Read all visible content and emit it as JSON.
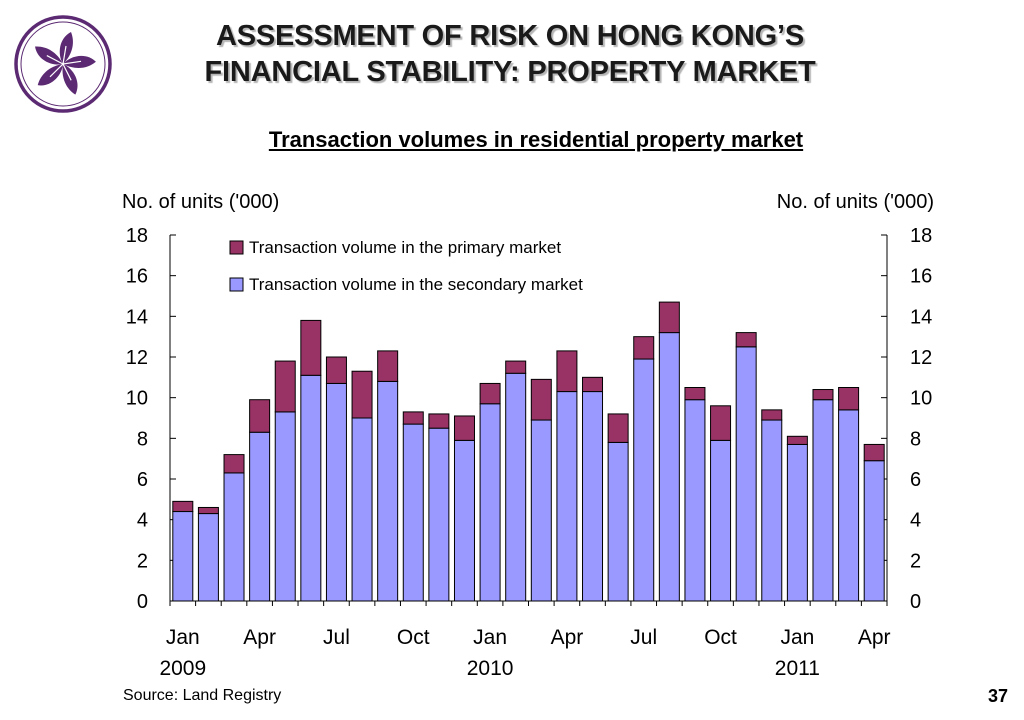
{
  "slide": {
    "title_line1": "ASSESSMENT OF RISK ON HONG KONG’S",
    "title_line2": "FINANCIAL STABILITY: PROPERTY MARKET",
    "source": "Source: Land Registry",
    "page_number": "37",
    "logo_icon": "bauhinia-flower-logo-icon",
    "logo_color": "#5b2a72"
  },
  "chart_data": {
    "type": "bar",
    "stacked": true,
    "title": "Transaction volumes in residential property market",
    "ylabel_left": "No. of units ('000)",
    "ylabel_right": "No. of units ('000)",
    "ylim": [
      0,
      18
    ],
    "yticks": [
      0,
      2,
      4,
      6,
      8,
      10,
      12,
      14,
      16,
      18
    ],
    "grid": false,
    "legend_position": "top-left",
    "x_tick_labels": [
      {
        "index": 0,
        "month": "Jan",
        "year": "2009"
      },
      {
        "index": 3,
        "month": "Apr",
        "year": ""
      },
      {
        "index": 6,
        "month": "Jul",
        "year": ""
      },
      {
        "index": 9,
        "month": "Oct",
        "year": ""
      },
      {
        "index": 12,
        "month": "Jan",
        "year": "2010"
      },
      {
        "index": 15,
        "month": "Apr",
        "year": ""
      },
      {
        "index": 18,
        "month": "Jul",
        "year": ""
      },
      {
        "index": 21,
        "month": "Oct",
        "year": ""
      },
      {
        "index": 24,
        "month": "Jan",
        "year": "2011"
      },
      {
        "index": 27,
        "month": "Apr",
        "year": ""
      }
    ],
    "categories": [
      "Jan 2009",
      "Feb 2009",
      "Mar 2009",
      "Apr 2009",
      "May 2009",
      "Jun 2009",
      "Jul 2009",
      "Aug 2009",
      "Sep 2009",
      "Oct 2009",
      "Nov 2009",
      "Dec 2009",
      "Jan 2010",
      "Feb 2010",
      "Mar 2010",
      "Apr 2010",
      "May 2010",
      "Jun 2010",
      "Jul 2010",
      "Aug 2010",
      "Sep 2010",
      "Oct 2010",
      "Nov 2010",
      "Dec 2010",
      "Jan 2011",
      "Feb 2011",
      "Mar 2011",
      "Apr 2011"
    ],
    "series": [
      {
        "name": "Transaction volume in the secondary market",
        "color": "#9999ff",
        "values": [
          4.4,
          4.3,
          6.3,
          8.3,
          9.3,
          11.1,
          10.7,
          9.0,
          10.8,
          8.7,
          8.5,
          7.9,
          9.7,
          11.2,
          8.9,
          10.3,
          10.3,
          7.8,
          11.9,
          13.2,
          9.9,
          7.9,
          12.5,
          8.9,
          7.7,
          9.9,
          9.4,
          6.9
        ]
      },
      {
        "name": "Transaction volume in the primary market",
        "color": "#993366",
        "values": [
          0.5,
          0.3,
          0.9,
          1.6,
          2.5,
          2.7,
          1.3,
          2.3,
          1.5,
          0.6,
          0.7,
          1.2,
          1.0,
          0.6,
          2.0,
          2.0,
          0.7,
          1.4,
          1.1,
          1.5,
          0.6,
          1.7,
          0.7,
          0.5,
          0.4,
          0.5,
          1.1,
          0.8
        ]
      }
    ]
  }
}
